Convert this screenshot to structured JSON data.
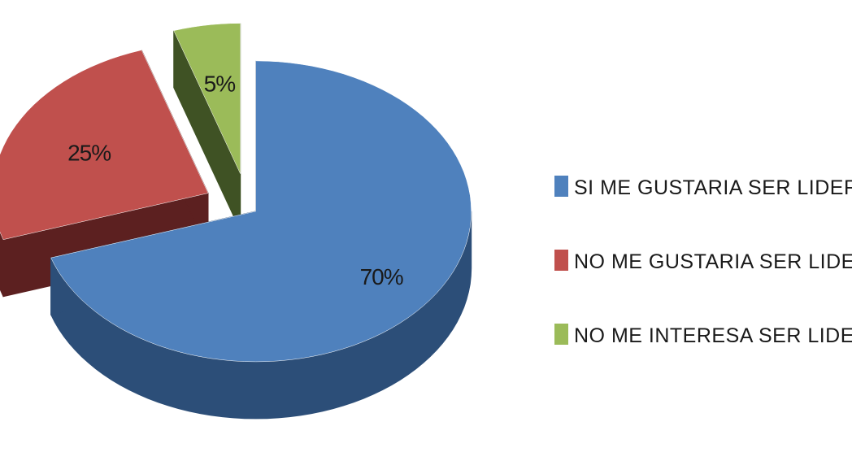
{
  "chart_data": {
    "type": "pie",
    "style": "3d-exploded",
    "categories": [
      "SI ME GUSTARIA SER LIDER",
      "NO ME GUSTARIA SER LIDER",
      "NO ME INTERESA SER LIDER"
    ],
    "values": [
      70,
      25,
      5
    ],
    "data_labels": [
      "70%",
      "25%",
      "5%"
    ],
    "colors": [
      "#4f81bd",
      "#c0504d",
      "#9bbb59"
    ],
    "side_colors": [
      "#2c4e78",
      "#5c2020",
      "#3f5224"
    ],
    "legend_position": "right",
    "title": ""
  }
}
